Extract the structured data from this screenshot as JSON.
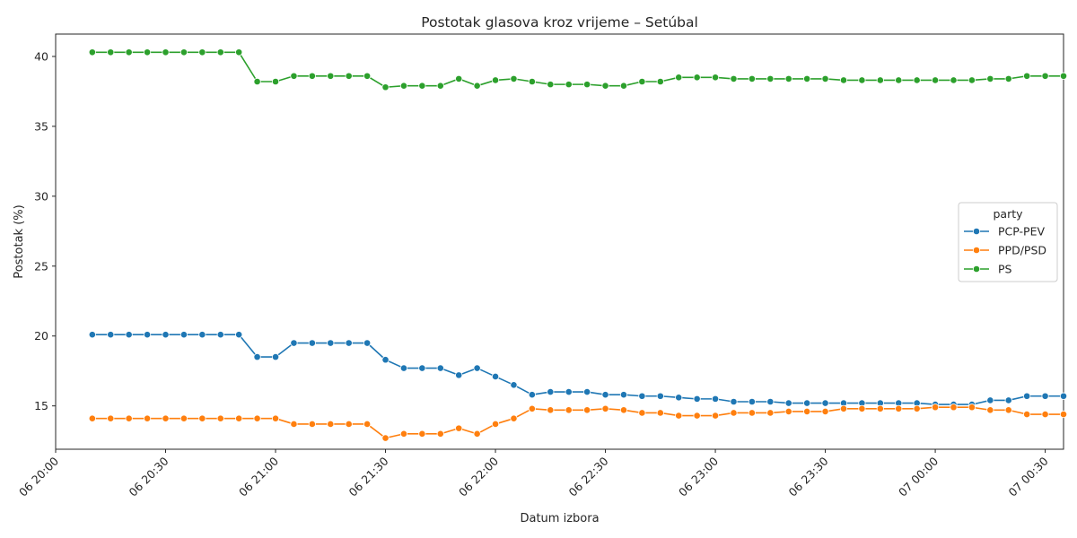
{
  "chart_data": {
    "type": "line",
    "title": "Postotak glasova kroz vrijeme – Setúbal",
    "xlabel": "Datum izbora",
    "ylabel": "Postotak (%)",
    "x_tick_labels": [
      "06 20:00",
      "06 20:30",
      "06 21:00",
      "06 21:30",
      "06 22:00",
      "06 22:30",
      "06 23:00",
      "06 23:30",
      "07 00:00",
      "07 00:30"
    ],
    "x_ticks_minutes_from_first": [
      0,
      30,
      60,
      90,
      120,
      150,
      180,
      210,
      240,
      270
    ],
    "y_ticks": [
      15,
      20,
      25,
      30,
      35,
      40
    ],
    "ylim": [
      11.9,
      41.6
    ],
    "x_range": [
      "06 20:00",
      "07 00:35"
    ],
    "legend": {
      "title": "party",
      "position": "right"
    },
    "grid": false,
    "x": [
      "06 20:10",
      "06 20:15",
      "06 20:20",
      "06 20:25",
      "06 20:30",
      "06 20:35",
      "06 20:40",
      "06 20:45",
      "06 20:50",
      "06 20:55",
      "06 21:00",
      "06 21:05",
      "06 21:10",
      "06 21:15",
      "06 21:20",
      "06 21:25",
      "06 21:30",
      "06 21:35",
      "06 21:40",
      "06 21:45",
      "06 21:50",
      "06 21:55",
      "06 22:00",
      "06 22:05",
      "06 22:10",
      "06 22:15",
      "06 22:20",
      "06 22:25",
      "06 22:30",
      "06 22:35",
      "06 22:40",
      "06 22:45",
      "06 22:50",
      "06 22:55",
      "06 23:00",
      "06 23:05",
      "06 23:10",
      "06 23:15",
      "06 23:20",
      "06 23:25",
      "06 23:30",
      "06 23:35",
      "06 23:40",
      "06 23:45",
      "06 23:50",
      "06 23:55",
      "07 00:00",
      "07 00:05",
      "07 00:10",
      "07 00:15",
      "07 00:20",
      "07 00:25",
      "07 00:30",
      "07 00:35"
    ],
    "series": [
      {
        "name": "PCP-PEV",
        "color": "#1f77b4",
        "values": [
          20.1,
          20.1,
          20.1,
          20.1,
          20.1,
          20.1,
          20.1,
          20.1,
          20.1,
          18.5,
          18.5,
          19.5,
          19.5,
          19.5,
          19.5,
          19.5,
          18.3,
          17.7,
          17.7,
          17.7,
          17.2,
          17.7,
          17.1,
          16.5,
          15.8,
          16.0,
          16.0,
          16.0,
          15.8,
          15.8,
          15.7,
          15.7,
          15.6,
          15.5,
          15.5,
          15.3,
          15.3,
          15.3,
          15.2,
          15.2,
          15.2,
          15.2,
          15.2,
          15.2,
          15.2,
          15.2,
          15.1,
          15.1,
          15.1,
          15.4,
          15.4,
          15.7,
          15.7,
          15.7
        ]
      },
      {
        "name": "PPD/PSD",
        "color": "#ff7f0e",
        "values": [
          14.1,
          14.1,
          14.1,
          14.1,
          14.1,
          14.1,
          14.1,
          14.1,
          14.1,
          14.1,
          14.1,
          13.7,
          13.7,
          13.7,
          13.7,
          13.7,
          12.7,
          13.0,
          13.0,
          13.0,
          13.4,
          13.0,
          13.7,
          14.1,
          14.8,
          14.7,
          14.7,
          14.7,
          14.8,
          14.7,
          14.5,
          14.5,
          14.3,
          14.3,
          14.3,
          14.5,
          14.5,
          14.5,
          14.6,
          14.6,
          14.6,
          14.8,
          14.8,
          14.8,
          14.8,
          14.8,
          14.9,
          14.9,
          14.9,
          14.7,
          14.7,
          14.4,
          14.4,
          14.4
        ]
      },
      {
        "name": "PS",
        "color": "#2ca02c",
        "values": [
          40.3,
          40.3,
          40.3,
          40.3,
          40.3,
          40.3,
          40.3,
          40.3,
          40.3,
          38.2,
          38.2,
          38.6,
          38.6,
          38.6,
          38.6,
          38.6,
          37.8,
          37.9,
          37.9,
          37.9,
          38.4,
          37.9,
          38.3,
          38.4,
          38.2,
          38.0,
          38.0,
          38.0,
          37.9,
          37.9,
          38.2,
          38.2,
          38.5,
          38.5,
          38.5,
          38.4,
          38.4,
          38.4,
          38.4,
          38.4,
          38.4,
          38.3,
          38.3,
          38.3,
          38.3,
          38.3,
          38.3,
          38.3,
          38.3,
          38.4,
          38.4,
          38.6,
          38.6,
          38.6
        ]
      }
    ]
  }
}
